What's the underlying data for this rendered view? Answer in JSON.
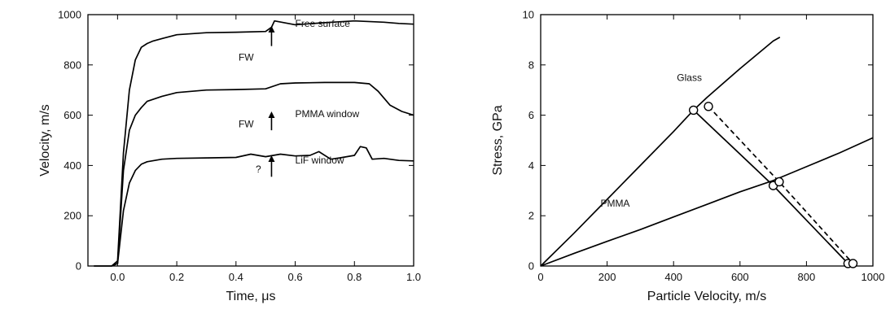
{
  "chart_data": [
    {
      "type": "line",
      "xlabel": "Time, μs",
      "ylabel": "Velocity, m/s",
      "xlim": [
        -0.1,
        1.0
      ],
      "ylim": [
        0,
        1000
      ],
      "xticks": [
        "0.0",
        "0.2",
        "0.4",
        "0.6",
        "0.8",
        "1.0"
      ],
      "yticks": [
        "0",
        "200",
        "400",
        "600",
        "800",
        "1000"
      ],
      "grid": false,
      "series": [
        {
          "name": "Free surface",
          "x": [
            -0.08,
            -0.02,
            0.0,
            0.02,
            0.04,
            0.06,
            0.08,
            0.1,
            0.12,
            0.15,
            0.2,
            0.3,
            0.4,
            0.5,
            0.52,
            0.53,
            0.6,
            0.7,
            0.8,
            0.9,
            0.95,
            1.0
          ],
          "y": [
            0,
            0,
            20,
            450,
            700,
            820,
            870,
            885,
            895,
            905,
            920,
            928,
            930,
            933,
            950,
            975,
            960,
            968,
            975,
            970,
            965,
            962
          ]
        },
        {
          "name": "PMMA window",
          "x": [
            -0.02,
            0.0,
            0.02,
            0.04,
            0.06,
            0.08,
            0.1,
            0.15,
            0.2,
            0.3,
            0.4,
            0.5,
            0.55,
            0.6,
            0.7,
            0.8,
            0.85,
            0.88,
            0.92,
            0.96,
            1.0
          ],
          "y": [
            0,
            10,
            380,
            540,
            600,
            630,
            655,
            675,
            690,
            700,
            702,
            705,
            725,
            728,
            730,
            730,
            725,
            695,
            640,
            615,
            600
          ]
        },
        {
          "name": "LiF window",
          "x": [
            -0.02,
            0.0,
            0.02,
            0.04,
            0.06,
            0.08,
            0.1,
            0.15,
            0.2,
            0.3,
            0.4,
            0.45,
            0.5,
            0.55,
            0.6,
            0.65,
            0.68,
            0.72,
            0.75,
            0.8,
            0.82,
            0.84,
            0.86,
            0.9,
            0.95,
            1.0
          ],
          "y": [
            0,
            10,
            220,
            330,
            380,
            405,
            415,
            425,
            428,
            430,
            432,
            445,
            435,
            445,
            438,
            440,
            455,
            425,
            430,
            440,
            475,
            470,
            425,
            428,
            420,
            418
          ]
        }
      ],
      "annotations": [
        {
          "text": "Free surface",
          "x": 0.6,
          "y": 965
        },
        {
          "text": "PMMA window",
          "x": 0.6,
          "y": 605
        },
        {
          "text": "LiF window",
          "x": 0.6,
          "y": 420
        },
        {
          "text": "FW",
          "x": 0.46,
          "y": 830
        },
        {
          "text": "FW",
          "x": 0.46,
          "y": 565
        },
        {
          "text": "?",
          "x": 0.485,
          "y": 385
        }
      ],
      "arrows": [
        {
          "x": 0.52,
          "from": 875,
          "to": 955
        },
        {
          "x": 0.52,
          "from": 540,
          "to": 615
        },
        {
          "x": 0.52,
          "from": 355,
          "to": 440
        }
      ]
    },
    {
      "type": "line",
      "xlabel": "Particle Velocity, m/s",
      "ylabel": "Stress, GPa",
      "xlim": [
        0,
        1000
      ],
      "ylim": [
        0,
        10
      ],
      "xticks": [
        "0",
        "200",
        "400",
        "600",
        "800",
        "1000"
      ],
      "yticks": [
        "0",
        "2",
        "4",
        "6",
        "8",
        "10"
      ],
      "grid": false,
      "series": [
        {
          "name": "Glass",
          "x": [
            0,
            100,
            200,
            300,
            400,
            460,
            500,
            600,
            700,
            720
          ],
          "y": [
            0,
            1.3,
            2.65,
            4.0,
            5.35,
            6.2,
            6.7,
            7.85,
            8.95,
            9.1
          ]
        },
        {
          "name": "PMMA",
          "x": [
            0,
            100,
            200,
            300,
            400,
            500,
            600,
            700,
            800,
            900,
            1000
          ],
          "y": [
            0,
            0.5,
            0.98,
            1.45,
            1.95,
            2.45,
            2.95,
            3.4,
            3.95,
            4.5,
            5.1
          ]
        },
        {
          "name": "release",
          "style": "solid",
          "x": [
            460,
            700,
            925
          ],
          "y": [
            6.2,
            3.2,
            0.1
          ]
        },
        {
          "name": "release-dashed",
          "style": "dashed",
          "x": [
            505,
            718,
            940
          ],
          "y": [
            6.35,
            3.35,
            0.1
          ]
        }
      ],
      "markers": [
        {
          "x": 460,
          "y": 6.2
        },
        {
          "x": 505,
          "y": 6.35
        },
        {
          "x": 700,
          "y": 3.2
        },
        {
          "x": 718,
          "y": 3.35
        },
        {
          "x": 925,
          "y": 0.1
        },
        {
          "x": 940,
          "y": 0.1
        }
      ],
      "annotations": [
        {
          "text": "Glass",
          "x": 410,
          "y": 7.5
        },
        {
          "text": "PMMA",
          "x": 180,
          "y": 2.5
        }
      ]
    }
  ]
}
